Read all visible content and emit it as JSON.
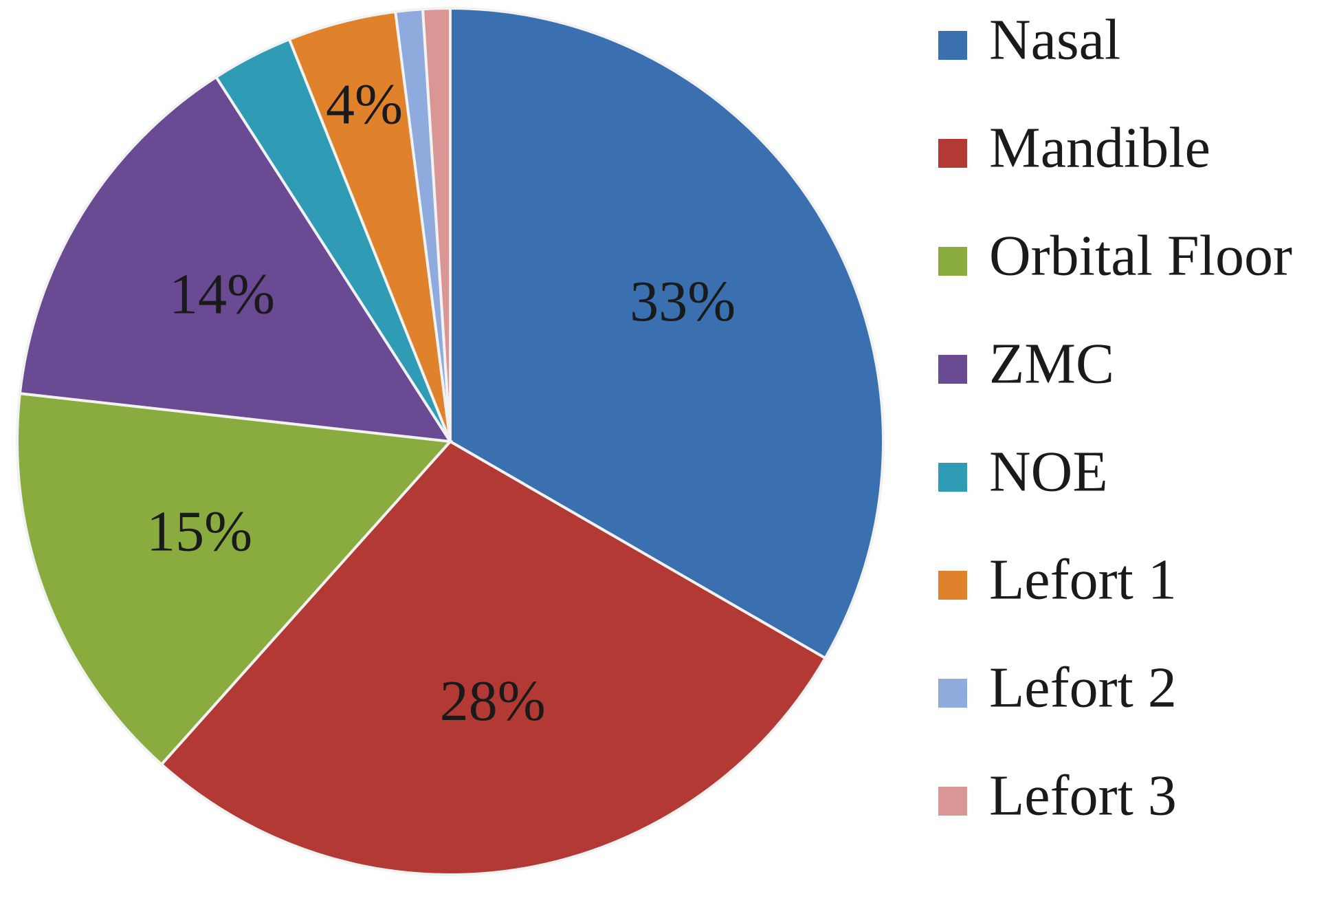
{
  "chart_data": {
    "type": "pie",
    "categories": [
      "Nasal",
      "Mandible",
      "Orbital Floor",
      "ZMC",
      "NOE",
      "Lefort 1",
      "Lefort 2",
      "Lefort 3"
    ],
    "values": [
      33,
      28,
      15,
      14,
      3,
      4,
      1,
      1
    ],
    "data_labels": [
      "33%",
      "28%",
      "15%",
      "14%",
      "",
      "4%",
      "",
      ""
    ],
    "colors": [
      "#3a6fb0",
      "#b33a34",
      "#8aab3e",
      "#6a4a93",
      "#2f9bb5",
      "#e0822c",
      "#8faadc",
      "#d99694"
    ],
    "start_angle_deg": 0,
    "direction": "clockwise",
    "legend_position": "right",
    "title": ""
  }
}
